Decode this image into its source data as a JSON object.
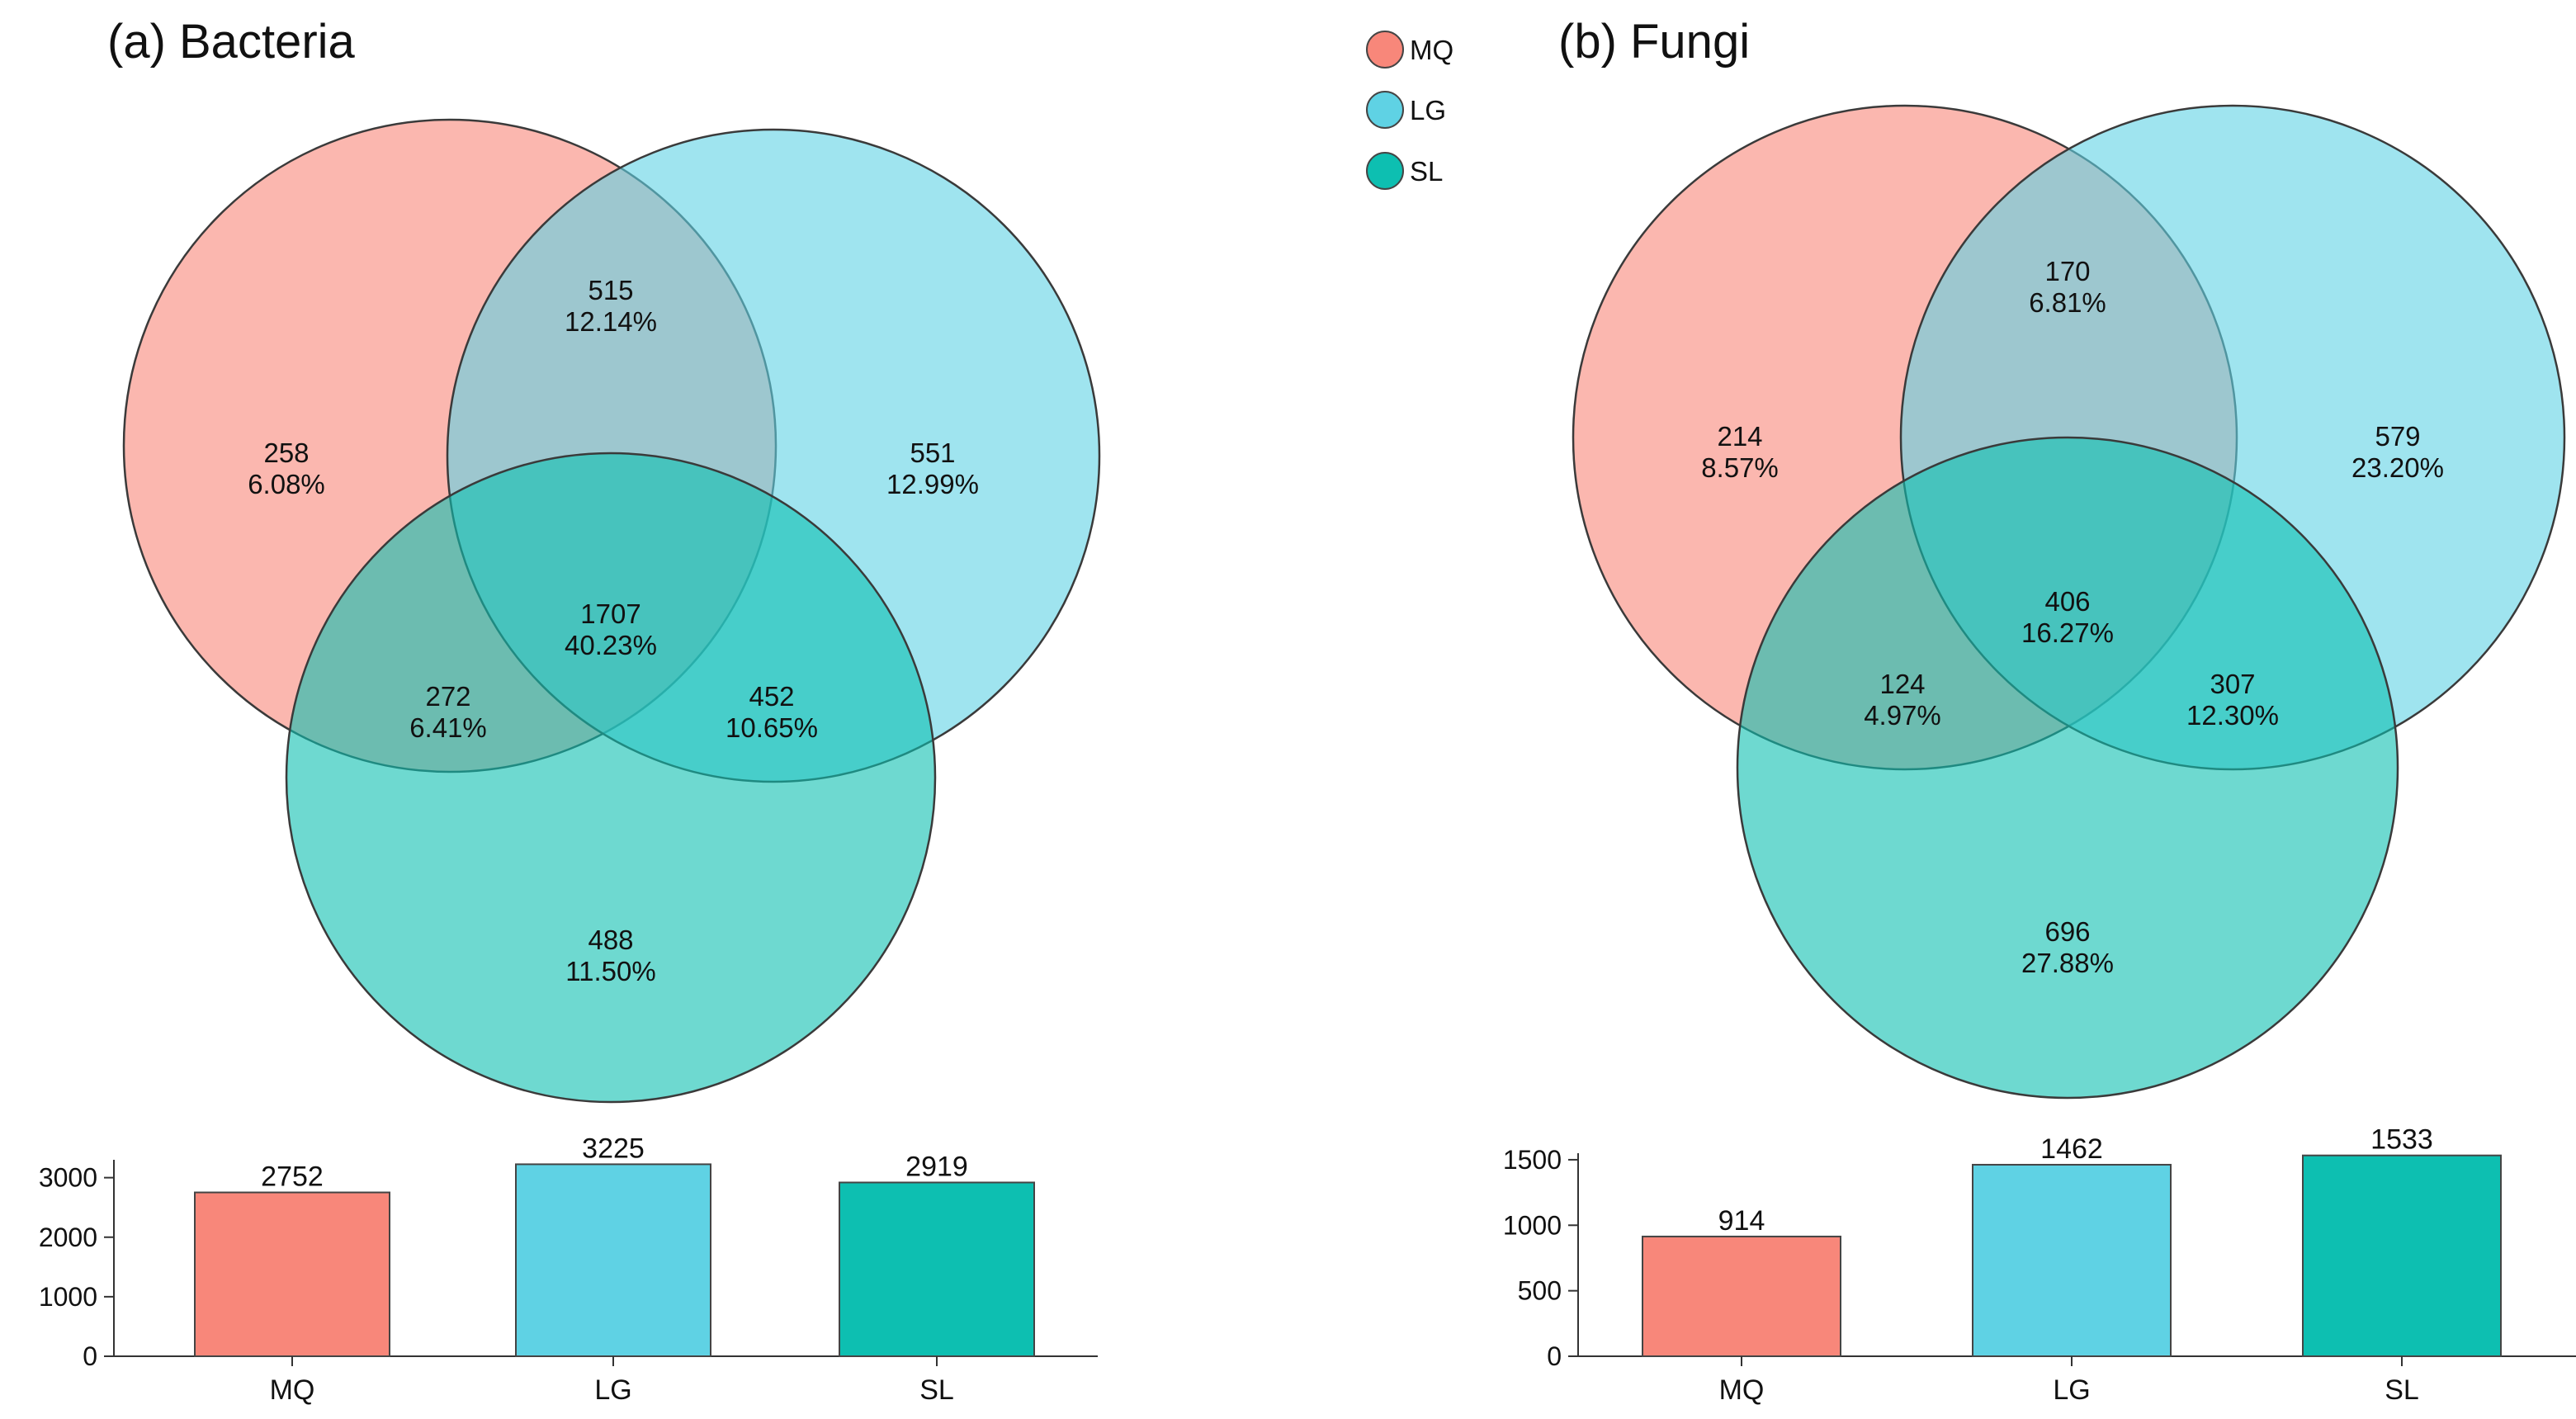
{
  "colors": {
    "MQ": "#f8877a",
    "LG": "#5fd2e4",
    "SL": "#0dbfb1"
  },
  "legend": [
    {
      "key": "MQ",
      "label": "MQ"
    },
    {
      "key": "LG",
      "label": "LG"
    },
    {
      "key": "SL",
      "label": "SL"
    }
  ],
  "chart_data": [
    {
      "type": "venn",
      "title": "(a) Bacteria",
      "sets": [
        "MQ",
        "LG",
        "SL"
      ],
      "regions": [
        {
          "id": "MQ_only",
          "sets": [
            "MQ"
          ],
          "count": "258",
          "percent": "6.08%"
        },
        {
          "id": "LG_only",
          "sets": [
            "LG"
          ],
          "count": "551",
          "percent": "12.99%"
        },
        {
          "id": "SL_only",
          "sets": [
            "SL"
          ],
          "count": "488",
          "percent": "11.50%"
        },
        {
          "id": "MQ_LG",
          "sets": [
            "MQ",
            "LG"
          ],
          "count": "515",
          "percent": "12.14%"
        },
        {
          "id": "MQ_SL",
          "sets": [
            "MQ",
            "SL"
          ],
          "count": "272",
          "percent": "6.41%"
        },
        {
          "id": "LG_SL",
          "sets": [
            "LG",
            "SL"
          ],
          "count": "452",
          "percent": "10.65%"
        },
        {
          "id": "all",
          "sets": [
            "MQ",
            "LG",
            "SL"
          ],
          "count": "1707",
          "percent": "40.23%"
        }
      ],
      "bars": {
        "type": "bar",
        "categories": [
          "MQ",
          "LG",
          "SL"
        ],
        "values": [
          2752,
          3225,
          2919
        ],
        "ylim": [
          0,
          3300
        ],
        "yticks": [
          0,
          1000,
          2000,
          3000
        ]
      }
    },
    {
      "type": "venn",
      "title": "(b) Fungi",
      "sets": [
        "MQ",
        "LG",
        "SL"
      ],
      "regions": [
        {
          "id": "MQ_only",
          "sets": [
            "MQ"
          ],
          "count": "214",
          "percent": "8.57%"
        },
        {
          "id": "LG_only",
          "sets": [
            "LG"
          ],
          "count": "579",
          "percent": "23.20%"
        },
        {
          "id": "SL_only",
          "sets": [
            "SL"
          ],
          "count": "696",
          "percent": "27.88%"
        },
        {
          "id": "MQ_LG",
          "sets": [
            "MQ",
            "LG"
          ],
          "count": "170",
          "percent": "6.81%"
        },
        {
          "id": "MQ_SL",
          "sets": [
            "MQ",
            "SL"
          ],
          "count": "124",
          "percent": "4.97%"
        },
        {
          "id": "LG_SL",
          "sets": [
            "LG",
            "SL"
          ],
          "count": "307",
          "percent": "12.30%"
        },
        {
          "id": "all",
          "sets": [
            "MQ",
            "LG",
            "SL"
          ],
          "count": "406",
          "percent": "16.27%"
        }
      ],
      "bars": {
        "type": "bar",
        "categories": [
          "MQ",
          "LG",
          "SL"
        ],
        "values": [
          914,
          1462,
          1533
        ],
        "ylim": [
          0,
          1550
        ],
        "yticks": [
          0,
          500,
          1000,
          1500
        ]
      }
    }
  ]
}
